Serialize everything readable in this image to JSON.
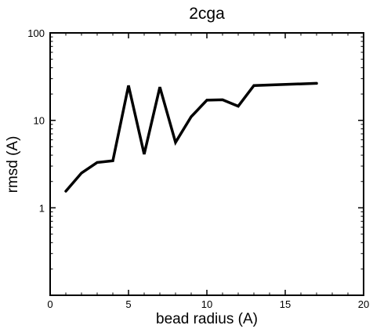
{
  "chart_data": {
    "type": "line",
    "title": "2cga",
    "xlabel": "bead radius (A)",
    "ylabel": "rmsd (A)",
    "xlim": [
      0,
      20
    ],
    "ylim": [
      0.1,
      100
    ],
    "yscale": "log",
    "grid": false,
    "x_ticks": [
      0,
      5,
      10,
      15,
      20
    ],
    "y_ticks": [
      1,
      10,
      100
    ],
    "x_tick_labels": [
      "0",
      "5",
      "10",
      "15",
      "20"
    ],
    "y_tick_labels": [
      "1",
      "10",
      "100"
    ],
    "line_color": "#000000",
    "series": [
      {
        "x": [
          1,
          2,
          3,
          4,
          5,
          6,
          7,
          8,
          9,
          10,
          11,
          12,
          13,
          17
        ],
        "y": [
          1.55,
          2.5,
          3.3,
          3.45,
          25,
          4.1,
          24,
          5.6,
          11,
          17,
          17.2,
          14.5,
          25,
          26.5
        ]
      }
    ]
  }
}
